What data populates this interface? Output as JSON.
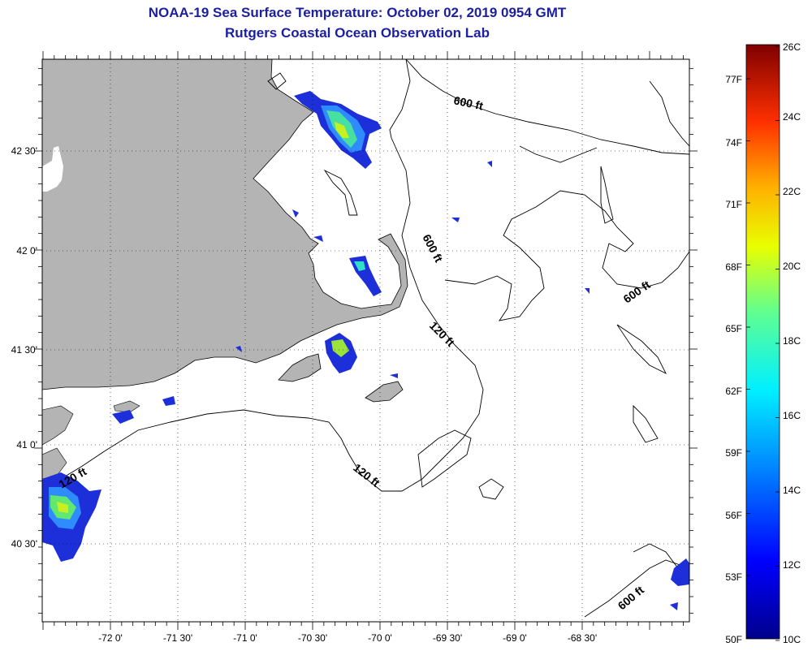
{
  "header": {
    "title": "NOAA-19 Sea Surface Temperature:  October 02, 2019 0954 GMT",
    "subtitle": "Rutgers Coastal Ocean Observation Lab"
  },
  "map": {
    "lon_ticks": [
      "-72 0'",
      "-71 30'",
      "-71 0'",
      "-70 30'",
      "-70 0'",
      "-69 30'",
      "-69 0'",
      "-68 30'"
    ],
    "lat_ticks": [
      "42 30'",
      "42 0'",
      "41 30'",
      "41 0'",
      "40 30'"
    ],
    "contour_labels": [
      "600 ft",
      "600 ft",
      "600 ft",
      "600 ft",
      "120 ft",
      "120 ft",
      "120 ft"
    ]
  },
  "colorbar": {
    "celsius": [
      "26C",
      "24C",
      "22C",
      "20C",
      "18C",
      "16C",
      "14C",
      "12C",
      "10C"
    ],
    "fahrenheit": [
      "77F",
      "74F",
      "71F",
      "68F",
      "65F",
      "62F",
      "59F",
      "56F",
      "53F",
      "50F"
    ],
    "colors": [
      "#7f0000",
      "#d40000",
      "#ff3a00",
      "#ff9a00",
      "#f5ee00",
      "#9be23a",
      "#2ee0c8",
      "#1f8cff",
      "#1b2fd6",
      "#00008b"
    ]
  }
}
